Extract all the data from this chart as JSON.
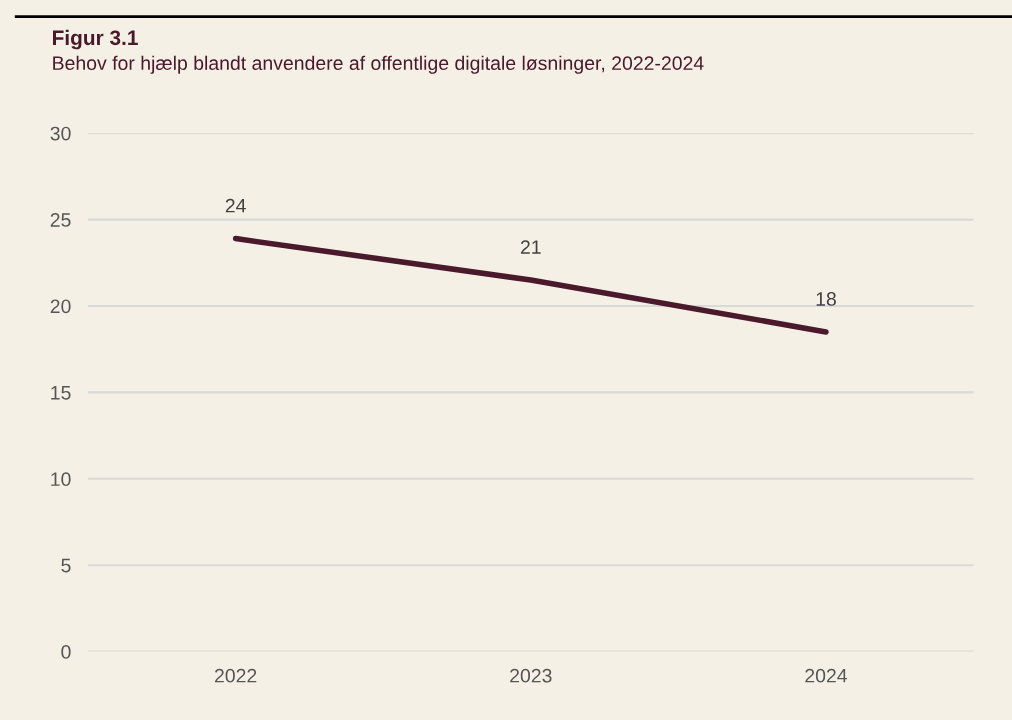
{
  "chart_data": {
    "type": "line",
    "title": "Figur 3.1",
    "subtitle": "Behov for hjælp blandt anvendere af offentlige digitale løsninger, 2022-2024",
    "categories": [
      "2022",
      "2023",
      "2024"
    ],
    "series": [
      {
        "color": "#4a1a2c",
        "values": [
          23.9,
          21.5,
          18.5
        ],
        "value_labels": [
          "24",
          "21",
          "18"
        ]
      }
    ],
    "ylim": [
      0,
      30
    ],
    "yticks": [
      0,
      5,
      10,
      15,
      20,
      25,
      30
    ],
    "grid": "y",
    "marker": "none",
    "line_style": "solid"
  }
}
